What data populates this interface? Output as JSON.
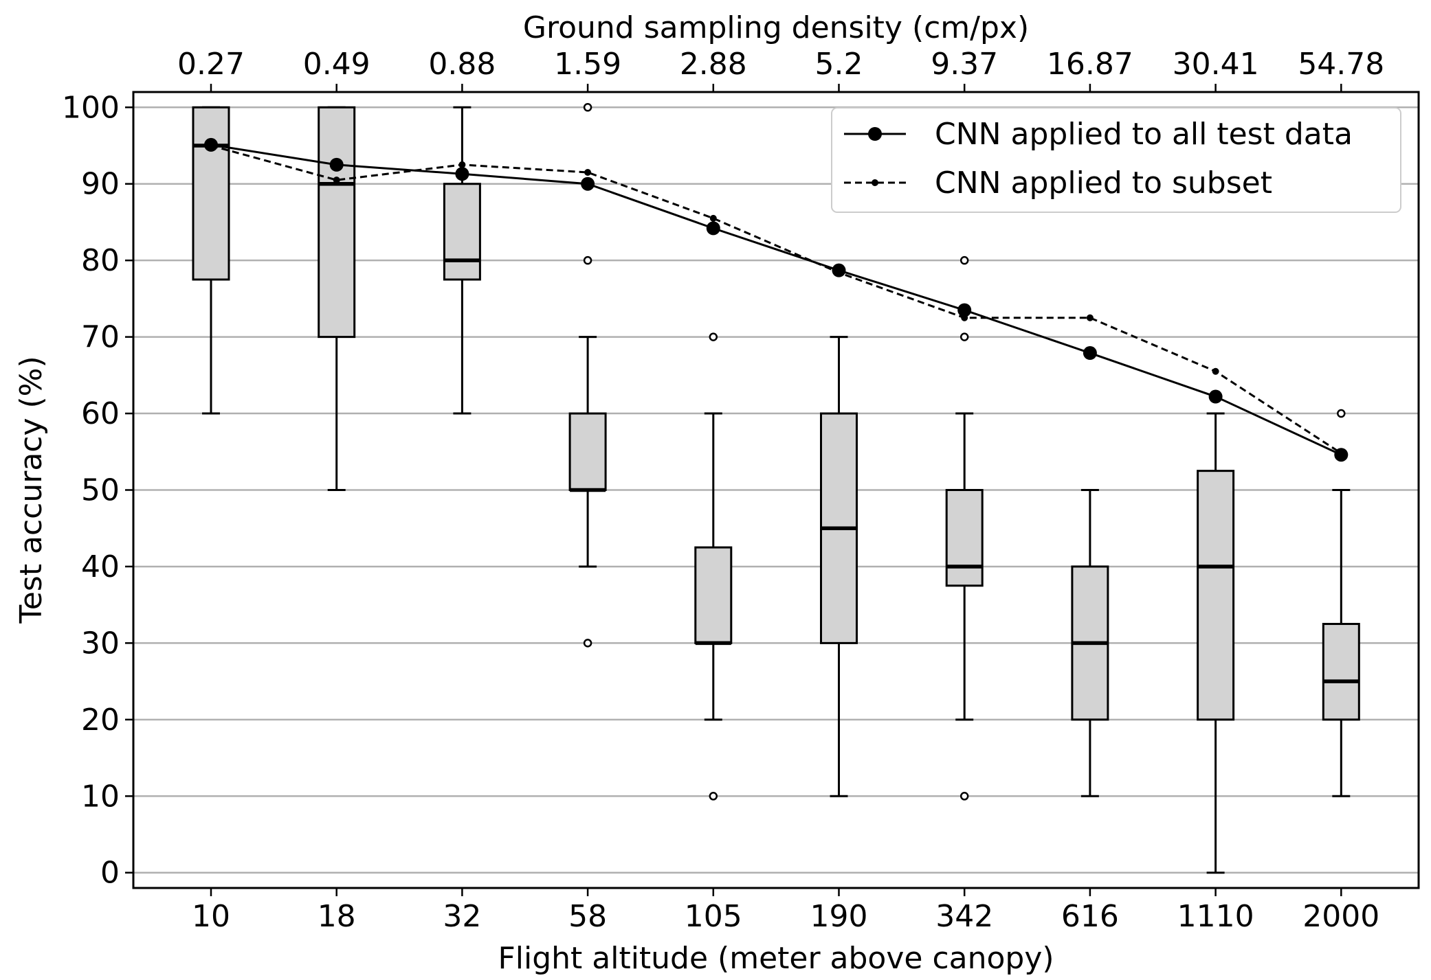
{
  "chart_data": {
    "type": "box",
    "x_axis": {
      "label": "Flight altitude (meter above canopy)",
      "categories": [
        "10",
        "18",
        "32",
        "58",
        "105",
        "190",
        "342",
        "616",
        "1110",
        "2000"
      ]
    },
    "x_axis_top": {
      "label": "Ground sampling density (cm/px)",
      "categories": [
        "0.27",
        "0.49",
        "0.88",
        "1.59",
        "2.88",
        "5.2",
        "9.37",
        "16.87",
        "30.41",
        "54.78"
      ]
    },
    "y_axis": {
      "label": "Test accuracy (%)",
      "ylim": [
        -2,
        102
      ],
      "ticks": [
        0,
        10,
        20,
        30,
        40,
        50,
        60,
        70,
        80,
        90,
        100
      ]
    },
    "grid": "horizontal",
    "boxes": [
      {
        "whisker_low": 60,
        "q1": 77.5,
        "median": 95,
        "q3": 100,
        "whisker_high": 100,
        "outliers": []
      },
      {
        "whisker_low": 50,
        "q1": 70,
        "median": 90,
        "q3": 100,
        "whisker_high": 100,
        "outliers": []
      },
      {
        "whisker_low": 60,
        "q1": 77.5,
        "median": 80,
        "q3": 90,
        "whisker_high": 100,
        "outliers": []
      },
      {
        "whisker_low": 40,
        "q1": 50,
        "median": 50,
        "q3": 60,
        "whisker_high": 70,
        "outliers": [
          30,
          80,
          100
        ]
      },
      {
        "whisker_low": 20,
        "q1": 30,
        "median": 30,
        "q3": 42.5,
        "whisker_high": 60,
        "outliers": [
          10,
          70
        ]
      },
      {
        "whisker_low": 10,
        "q1": 30,
        "median": 45,
        "q3": 60,
        "whisker_high": 70,
        "outliers": []
      },
      {
        "whisker_low": 20,
        "q1": 37.5,
        "median": 40,
        "q3": 50,
        "whisker_high": 60,
        "outliers": [
          10,
          70,
          80
        ]
      },
      {
        "whisker_low": 10,
        "q1": 20,
        "median": 30,
        "q3": 40,
        "whisker_high": 50,
        "outliers": []
      },
      {
        "whisker_low": 0,
        "q1": 20,
        "median": 40,
        "q3": 52.5,
        "whisker_high": 60,
        "outliers": []
      },
      {
        "whisker_low": 10,
        "q1": 20,
        "median": 25,
        "q3": 32.5,
        "whisker_high": 50,
        "outliers": [
          60
        ]
      }
    ],
    "series": [
      {
        "name": "CNN applied to all test data",
        "style": "solid",
        "marker": "large-dot",
        "values": [
          95.1,
          92.5,
          91.3,
          90.0,
          84.2,
          78.7,
          73.5,
          67.9,
          62.2,
          54.6
        ]
      },
      {
        "name": "CNN applied to subset",
        "style": "dashed",
        "marker": "small-dot",
        "values": [
          95.0,
          90.5,
          92.5,
          91.5,
          85.5,
          78.4,
          72.5,
          72.5,
          65.5,
          54.8
        ]
      }
    ],
    "legend": "top-right",
    "colors": {
      "box_fill": "#d3d3d3",
      "line": "#000000",
      "grid": "#b0b0b0"
    }
  }
}
